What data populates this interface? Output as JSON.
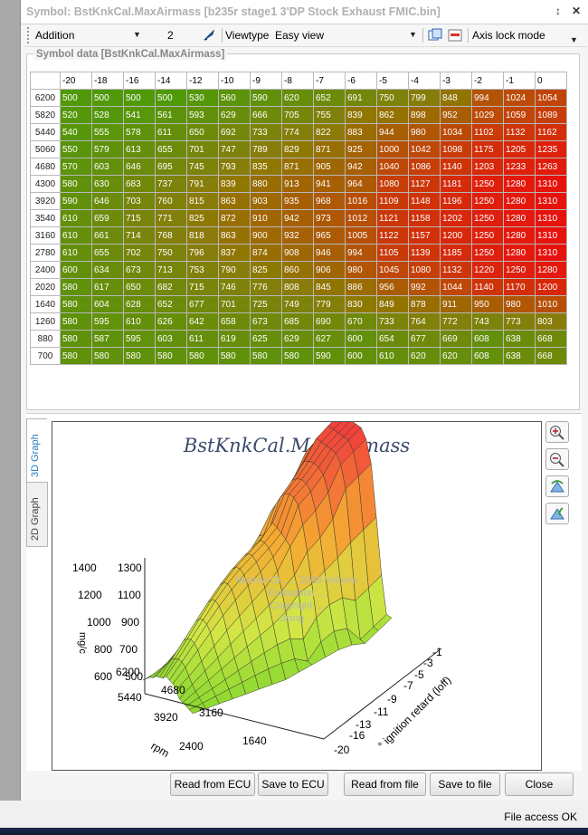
{
  "window": {
    "title": "Symbol: BstKnkCal.MaxAirmass [b235r stage1 3'DP Stock Exhaust FMIC.bin]"
  },
  "toolbar": {
    "operation": "Addition",
    "value": "2",
    "viewtype_label": "Viewtype",
    "viewtype": "Easy view",
    "axis_lock": "Axis lock mode"
  },
  "symbol_group": {
    "label": "Symbol data [BstKnkCal.MaxAirmass]"
  },
  "table": {
    "columns": [
      "-20",
      "-18",
      "-16",
      "-14",
      "-12",
      "-10",
      "-9",
      "-8",
      "-7",
      "-6",
      "-5",
      "-4",
      "-3",
      "-2",
      "-1",
      "0"
    ],
    "rows": [
      {
        "rpm": "6200",
        "values": [
          "500",
          "500",
          "500",
          "500",
          "530",
          "560",
          "590",
          "620",
          "652",
          "691",
          "750",
          "799",
          "848",
          "994",
          "1024",
          "1054"
        ]
      },
      {
        "rpm": "5820",
        "values": [
          "520",
          "528",
          "541",
          "561",
          "593",
          "629",
          "666",
          "705",
          "755",
          "839",
          "862",
          "898",
          "952",
          "1029",
          "1059",
          "1089"
        ]
      },
      {
        "rpm": "5440",
        "values": [
          "540",
          "555",
          "578",
          "611",
          "650",
          "692",
          "733",
          "774",
          "822",
          "883",
          "944",
          "980",
          "1034",
          "1102",
          "1132",
          "1162"
        ]
      },
      {
        "rpm": "5060",
        "values": [
          "550",
          "579",
          "613",
          "655",
          "701",
          "747",
          "789",
          "829",
          "871",
          "925",
          "1000",
          "1042",
          "1098",
          "1175",
          "1205",
          "1235"
        ]
      },
      {
        "rpm": "4680",
        "values": [
          "570",
          "603",
          "646",
          "695",
          "745",
          "793",
          "835",
          "871",
          "905",
          "942",
          "1040",
          "1086",
          "1140",
          "1203",
          "1233",
          "1263"
        ]
      },
      {
        "rpm": "4300",
        "values": [
          "580",
          "630",
          "683",
          "737",
          "791",
          "839",
          "880",
          "913",
          "941",
          "964",
          "1080",
          "1127",
          "1181",
          "1250",
          "1280",
          "1310"
        ]
      },
      {
        "rpm": "3920",
        "values": [
          "590",
          "646",
          "703",
          "760",
          "815",
          "863",
          "903",
          "935",
          "968",
          "1016",
          "1109",
          "1148",
          "1196",
          "1250",
          "1280",
          "1310"
        ]
      },
      {
        "rpm": "3540",
        "values": [
          "610",
          "659",
          "715",
          "771",
          "825",
          "872",
          "910",
          "942",
          "973",
          "1012",
          "1121",
          "1158",
          "1202",
          "1250",
          "1280",
          "1310"
        ]
      },
      {
        "rpm": "3160",
        "values": [
          "610",
          "661",
          "714",
          "768",
          "818",
          "863",
          "900",
          "932",
          "965",
          "1005",
          "1122",
          "1157",
          "1200",
          "1250",
          "1280",
          "1310"
        ]
      },
      {
        "rpm": "2780",
        "values": [
          "610",
          "655",
          "702",
          "750",
          "796",
          "837",
          "874",
          "908",
          "946",
          "994",
          "1105",
          "1139",
          "1185",
          "1250",
          "1280",
          "1310"
        ]
      },
      {
        "rpm": "2400",
        "values": [
          "600",
          "634",
          "673",
          "713",
          "753",
          "790",
          "825",
          "860",
          "906",
          "980",
          "1045",
          "1080",
          "1132",
          "1220",
          "1250",
          "1280"
        ]
      },
      {
        "rpm": "2020",
        "values": [
          "580",
          "617",
          "650",
          "682",
          "715",
          "746",
          "776",
          "808",
          "845",
          "886",
          "956",
          "992",
          "1044",
          "1140",
          "1170",
          "1200"
        ]
      },
      {
        "rpm": "1640",
        "values": [
          "580",
          "604",
          "628",
          "652",
          "677",
          "701",
          "725",
          "749",
          "779",
          "830",
          "849",
          "878",
          "911",
          "950",
          "980",
          "1010"
        ]
      },
      {
        "rpm": "1260",
        "values": [
          "580",
          "595",
          "610",
          "626",
          "642",
          "658",
          "673",
          "685",
          "690",
          "670",
          "733",
          "764",
          "772",
          "743",
          "773",
          "803"
        ]
      },
      {
        "rpm": "880",
        "values": [
          "580",
          "587",
          "595",
          "603",
          "611",
          "619",
          "625",
          "629",
          "627",
          "600",
          "654",
          "677",
          "669",
          "608",
          "638",
          "668"
        ]
      },
      {
        "rpm": "700",
        "values": [
          "580",
          "580",
          "580",
          "580",
          "580",
          "580",
          "580",
          "580",
          "590",
          "600",
          "610",
          "620",
          "620",
          "608",
          "638",
          "668"
        ]
      }
    ]
  },
  "graph": {
    "title": "BstKnkCal.MaxAirmass",
    "tab_3d": "3D Graph",
    "tab_2d": "2D Graph",
    "z_axis_label": "mg/c",
    "z_ticks": [
      "1400",
      "1300",
      "1200",
      "1100",
      "1000",
      "900",
      "800",
      "700",
      "600",
      "500"
    ],
    "rpm_axis_label": "rpm",
    "rpm_ticks": [
      "6200",
      "5440",
      "4680",
      "3920",
      "3160",
      "2400",
      "1640"
    ],
    "ign_axis_label": "° ignition retard (loff)",
    "ign_ticks": [
      "-1",
      "-3",
      "-5",
      "-7",
      "-9",
      "-11",
      "-13",
      "-16",
      "-20"
    ],
    "watermark": [
      "Nevron Gl... ...2008 Volume",
      "Evaluation ...",
      "Copyright ...",
      "Using ..."
    ]
  },
  "buttons": {
    "read_ecu": "Read from ECU",
    "save_ecu": "Save to ECU",
    "read_file": "Read from file",
    "save_file": "Save to file",
    "close": "Close"
  },
  "status": {
    "text": "File access OK"
  },
  "colors": {
    "low": "#4f9a0a",
    "mid": "#8c7a00",
    "high": "#e31b0c"
  }
}
